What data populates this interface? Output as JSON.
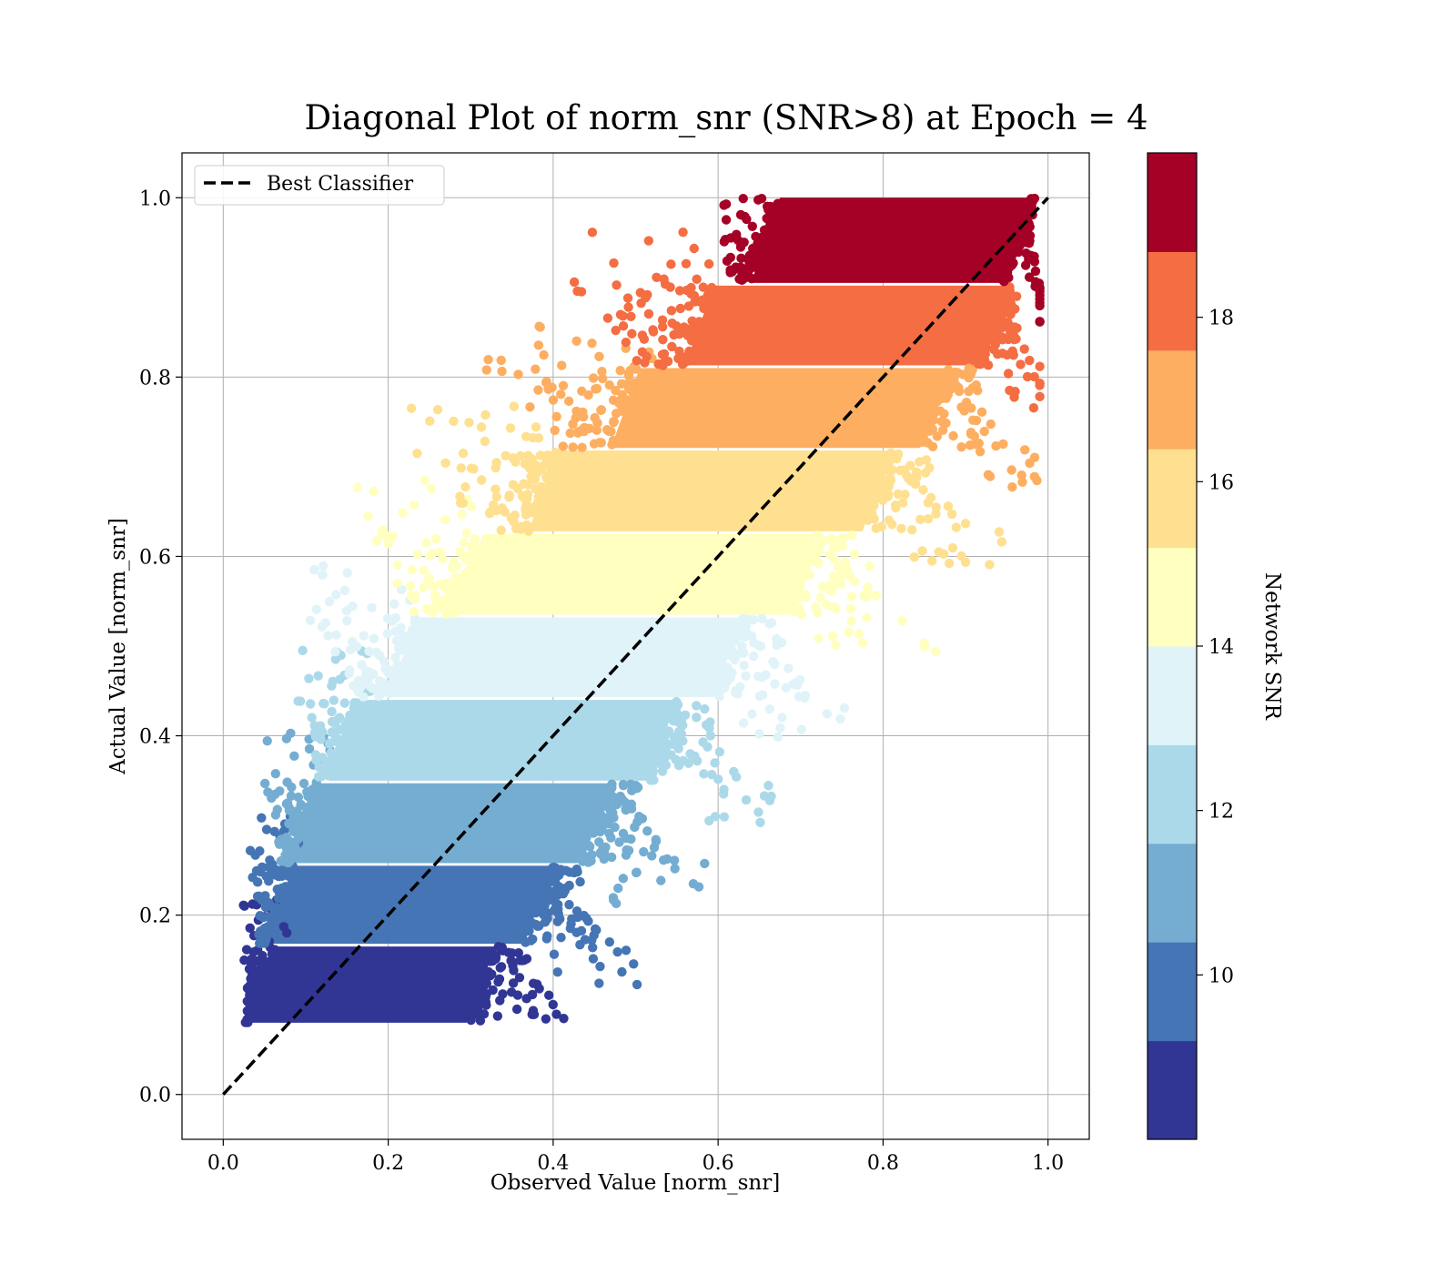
{
  "chart_data": {
    "type": "scatter",
    "title": "Diagonal Plot of norm_snr (SNR>8) at Epoch = 4",
    "xlabel": "Observed Value [norm_snr]",
    "ylabel": "Actual Value [norm_snr]",
    "xlim": [
      -0.05,
      1.05
    ],
    "ylim": [
      -0.05,
      1.05
    ],
    "x_ticks": [
      "0.0",
      "0.2",
      "0.4",
      "0.6",
      "0.8",
      "1.0"
    ],
    "y_ticks": [
      "0.0",
      "0.2",
      "0.4",
      "0.6",
      "0.8",
      "1.0"
    ],
    "grid": true,
    "legend": {
      "position": "upper-left",
      "entries": [
        "Best Classifier"
      ]
    },
    "reference_line": {
      "name": "Best Classifier",
      "x": [
        0,
        1
      ],
      "y": [
        0,
        1
      ],
      "style": "dashed",
      "color": "#000000"
    },
    "colorbar": {
      "label": "Network SNR",
      "range": [
        8,
        20
      ],
      "ticks": [
        "10",
        "12",
        "14",
        "16",
        "18"
      ],
      "colors": [
        "#313695",
        "#4575b4",
        "#74add1",
        "#abd9e9",
        "#e0f3f8",
        "#ffffbf",
        "#fee090",
        "#fdae61",
        "#f46d43",
        "#a50026"
      ]
    },
    "bands": [
      {
        "snr_bin": [
          8,
          9.2
        ],
        "y_range": [
          0.08,
          0.165
        ],
        "x_core": [
          0.03,
          0.33
        ],
        "x_tail": [
          0.02,
          0.42
        ],
        "color": "#313695"
      },
      {
        "snr_bin": [
          9.2,
          10.4
        ],
        "y_range": [
          0.168,
          0.255
        ],
        "x_core": [
          0.05,
          0.4
        ],
        "x_tail": [
          0.03,
          0.47
        ],
        "color": "#4575b4"
      },
      {
        "snr_bin": [
          10.4,
          11.6
        ],
        "y_range": [
          0.258,
          0.347
        ],
        "x_core": [
          0.08,
          0.47
        ],
        "x_tail": [
          0.05,
          0.55
        ],
        "color": "#74add1"
      },
      {
        "snr_bin": [
          11.6,
          12.8
        ],
        "y_range": [
          0.35,
          0.44
        ],
        "x_core": [
          0.13,
          0.55
        ],
        "x_tail": [
          0.09,
          0.63
        ],
        "color": "#abd9e9"
      },
      {
        "snr_bin": [
          12.8,
          14
        ],
        "y_range": [
          0.443,
          0.532
        ],
        "x_core": [
          0.2,
          0.63
        ],
        "x_tail": [
          0.1,
          0.72
        ],
        "color": "#e0f3f8"
      },
      {
        "snr_bin": [
          14,
          15.2
        ],
        "y_range": [
          0.535,
          0.625
        ],
        "x_core": [
          0.28,
          0.72
        ],
        "x_tail": [
          0.16,
          0.83
        ],
        "color": "#ffffbf"
      },
      {
        "snr_bin": [
          15.2,
          16.4
        ],
        "y_range": [
          0.628,
          0.718
        ],
        "x_core": [
          0.37,
          0.81
        ],
        "x_tail": [
          0.22,
          0.91
        ],
        "color": "#fee090"
      },
      {
        "snr_bin": [
          16.4,
          17.6
        ],
        "y_range": [
          0.721,
          0.81
        ],
        "x_core": [
          0.47,
          0.88
        ],
        "x_tail": [
          0.31,
          0.95
        ],
        "color": "#fdae61"
      },
      {
        "snr_bin": [
          17.6,
          18.8
        ],
        "y_range": [
          0.813,
          0.902
        ],
        "x_core": [
          0.56,
          0.95
        ],
        "x_tail": [
          0.42,
          0.98
        ],
        "color": "#f46d43"
      },
      {
        "snr_bin": [
          18.8,
          20
        ],
        "y_range": [
          0.905,
          1.0
        ],
        "x_core": [
          0.64,
          0.98
        ],
        "x_tail": [
          0.58,
          0.99
        ],
        "color": "#a50026"
      }
    ]
  }
}
